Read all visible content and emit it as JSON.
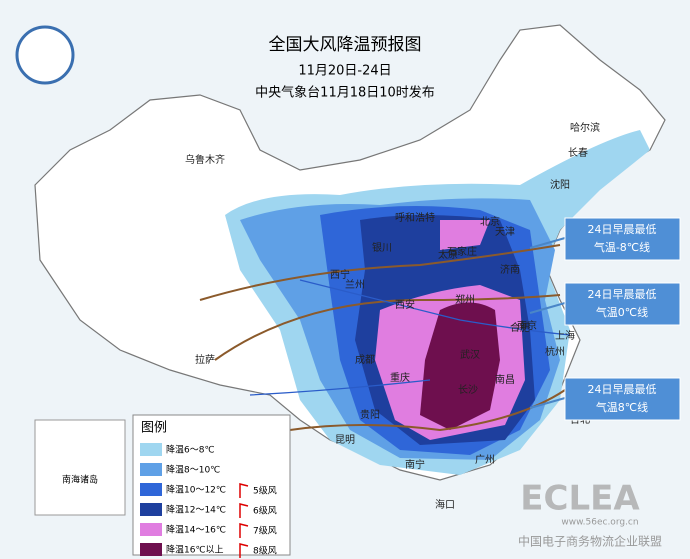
{
  "header": {
    "title": "全国大风降温预报图",
    "subtitle": "11月20日-24日",
    "issuer": "中央气象台11月18日10时发布"
  },
  "cities": [
    "乌鲁木齐",
    "哈尔滨",
    "长春",
    "沈阳",
    "呼和浩特",
    "北京",
    "天津",
    "石家庄",
    "太原",
    "银川",
    "济南",
    "西宁",
    "兰州",
    "郑州",
    "西安",
    "合肥",
    "南京",
    "上海",
    "杭州",
    "武汉",
    "成都",
    "重庆",
    "长沙",
    "南昌",
    "拉萨",
    "贵阳",
    "昆明",
    "南宁",
    "广州",
    "台北",
    "海口"
  ],
  "callouts": [
    {
      "lines": [
        "24日早晨最低",
        "气温-8℃线"
      ]
    },
    {
      "lines": [
        "24日早晨最低",
        "气温0℃线"
      ]
    },
    {
      "lines": [
        "24日早晨最低",
        "气温8℃线"
      ]
    }
  ],
  "legend": {
    "title": "图例",
    "items": [
      {
        "label": "降温6～8℃",
        "color": "#9fd6f0"
      },
      {
        "label": "降温8～10℃",
        "color": "#5fa0e6"
      },
      {
        "label": "降温10～12℃",
        "color": "#2f66d8"
      },
      {
        "label": "降温12～14℃",
        "color": "#1e3f9e"
      },
      {
        "label": "降温14～16℃",
        "color": "#e07de0"
      },
      {
        "label": "降温16℃以上",
        "color": "#6e0f4e"
      }
    ],
    "wind": [
      "5级风",
      "6级风",
      "7级风",
      "8级风"
    ]
  },
  "inset": {
    "label": "南海诸岛"
  },
  "watermark": {
    "logo": "ECLEA",
    "url": "www.56ec.org.cn",
    "org": "中国电子商务物流企业联盟"
  }
}
